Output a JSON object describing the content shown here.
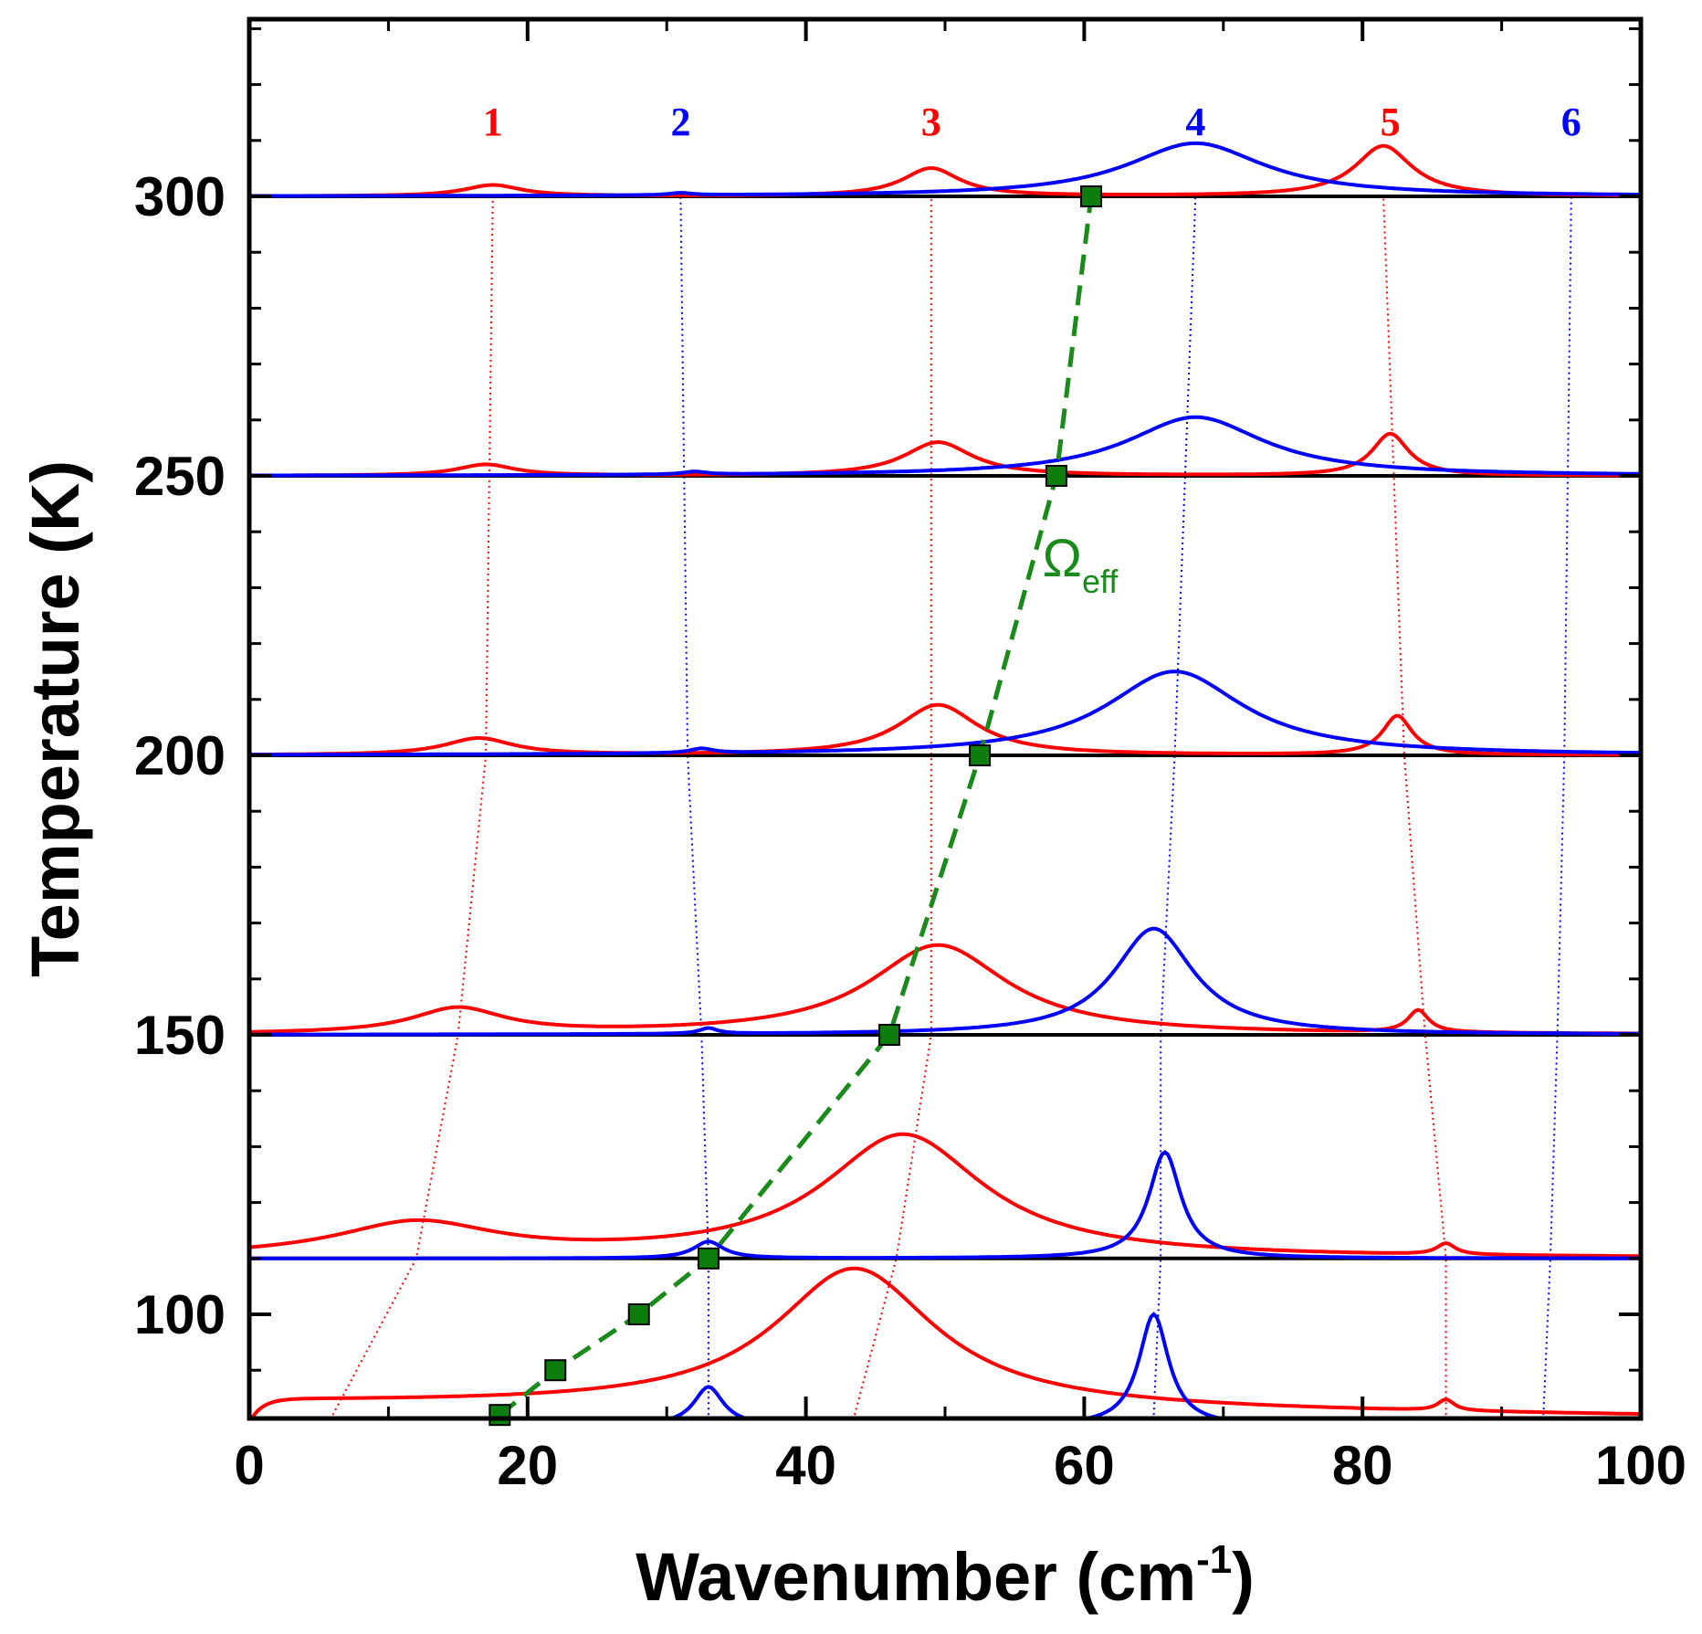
{
  "chart_data": {
    "type": "line",
    "title": "",
    "xlabel": "Wavenumber (cm",
    "xlabel_sup": "-1",
    "xlabel_close": ")",
    "ylabel": "Temperature (K)",
    "xlim": [
      0,
      100
    ],
    "ylim": [
      80,
      330
    ],
    "x_ticks": [
      "0",
      "20",
      "40",
      "60",
      "80",
      "100"
    ],
    "x_tick_values": [
      0,
      20,
      40,
      60,
      80,
      100
    ],
    "y_ticks": [
      "100",
      "150",
      "200",
      "250",
      "300"
    ],
    "y_tick_values": [
      100,
      150,
      200,
      250,
      300
    ],
    "colors": {
      "red": "#ff0000",
      "blue": "#0000ff",
      "green": "#1a8a1a",
      "marker": "#0d7d0d"
    },
    "peak_labels": [
      {
        "text": "1",
        "x": 17.5,
        "color": "red"
      },
      {
        "text": "2",
        "x": 31,
        "color": "blue"
      },
      {
        "text": "3",
        "x": 49,
        "color": "red"
      },
      {
        "text": "4",
        "x": 68,
        "color": "blue"
      },
      {
        "text": "5",
        "x": 82,
        "color": "red"
      },
      {
        "text": "6",
        "x": 95,
        "color": "blue"
      }
    ],
    "omega_label": {
      "main": "Ω",
      "sub": "eff",
      "x": 57,
      "y": 232
    },
    "omega_eff": {
      "name": "Ωeff",
      "x": [
        18,
        22,
        28,
        33,
        46,
        52.5,
        58,
        60.5
      ],
      "y": [
        82,
        90,
        100,
        110,
        150,
        200,
        250,
        300
      ]
    },
    "mode_traces": [
      {
        "mode": "1",
        "color": "red",
        "x": [
          6,
          12,
          15,
          17,
          17.5
        ],
        "y": [
          82,
          110,
          150,
          200,
          300
        ]
      },
      {
        "mode": "2",
        "color": "blue",
        "x": [
          33,
          33,
          32.5,
          31.5,
          31
        ],
        "y": [
          82,
          110,
          150,
          200,
          300
        ]
      },
      {
        "mode": "3",
        "color": "red",
        "x": [
          43.5,
          46.5,
          49,
          49,
          49
        ],
        "y": [
          82,
          110,
          150,
          200,
          300
        ]
      },
      {
        "mode": "4",
        "color": "blue",
        "x": [
          65,
          65.5,
          65.5,
          66.5,
          68
        ],
        "y": [
          82,
          110,
          150,
          200,
          300
        ]
      },
      {
        "mode": "5",
        "color": "red",
        "x": [
          86,
          86,
          84.5,
          83,
          81.5
        ],
        "y": [
          82,
          110,
          150,
          200,
          300
        ]
      },
      {
        "mode": "6",
        "color": "blue",
        "x": [
          93,
          93.5,
          94,
          94.5,
          95
        ],
        "y": [
          82,
          110,
          150,
          200,
          300
        ]
      }
    ],
    "spectra": [
      {
        "temperature": 80,
        "baseline": 80,
        "red_peaks": [
          {
            "center": 43.5,
            "amp": 25,
            "width": 7
          },
          {
            "center": 86,
            "amp": 2,
            "width": 0.7
          }
        ],
        "red_drude": {
          "amp": 4.3,
          "tau": 0.9,
          "slope": 0.025
        },
        "blue_peaks": [
          {
            "center": 65,
            "amp": 20,
            "width": 1.3
          },
          {
            "center": 33,
            "amp": 7,
            "width": 1.3
          }
        ]
      },
      {
        "temperature": 110,
        "baseline": 110,
        "red_peaks": [
          {
            "center": 12,
            "amp": 6,
            "width": 7
          },
          {
            "center": 47,
            "amp": 22,
            "width": 7
          },
          {
            "center": 86,
            "amp": 2,
            "width": 0.8
          }
        ],
        "blue_peaks": [
          {
            "center": 65.8,
            "amp": 19,
            "width": 1.4
          },
          {
            "center": 33,
            "amp": 3,
            "width": 1.3
          }
        ]
      },
      {
        "temperature": 150,
        "baseline": 150,
        "red_peaks": [
          {
            "center": 15,
            "amp": 4.5,
            "width": 4
          },
          {
            "center": 49.5,
            "amp": 16,
            "width": 6
          },
          {
            "center": 84,
            "amp": 4,
            "width": 0.9
          }
        ],
        "blue_peaks": [
          {
            "center": 65,
            "amp": 19,
            "width": 3.5
          },
          {
            "center": 33,
            "amp": 1,
            "width": 0.8
          }
        ]
      },
      {
        "temperature": 200,
        "baseline": 200,
        "red_peaks": [
          {
            "center": 16.5,
            "amp": 3,
            "width": 3
          },
          {
            "center": 49.5,
            "amp": 9,
            "width": 3.5
          },
          {
            "center": 82.5,
            "amp": 7,
            "width": 1.3
          }
        ],
        "blue_peaks": [
          {
            "center": 66.5,
            "amp": 15,
            "width": 6
          },
          {
            "center": 32.5,
            "amp": 0.8,
            "width": 1
          }
        ]
      },
      {
        "temperature": 250,
        "baseline": 250,
        "red_peaks": [
          {
            "center": 17,
            "amp": 2,
            "width": 2.5
          },
          {
            "center": 49.5,
            "amp": 6,
            "width": 3
          },
          {
            "center": 82,
            "amp": 7.5,
            "width": 1.6
          }
        ],
        "blue_peaks": [
          {
            "center": 68,
            "amp": 10.5,
            "width": 6
          },
          {
            "center": 32,
            "amp": 0.5,
            "width": 1
          }
        ]
      },
      {
        "temperature": 300,
        "baseline": 300,
        "red_peaks": [
          {
            "center": 17.5,
            "amp": 2,
            "width": 2.5
          },
          {
            "center": 49,
            "amp": 5,
            "width": 2.5
          },
          {
            "center": 81.5,
            "amp": 9,
            "width": 2.5
          }
        ],
        "blue_peaks": [
          {
            "center": 68,
            "amp": 9.5,
            "width": 6
          },
          {
            "center": 31,
            "amp": 0.4,
            "width": 1
          }
        ]
      }
    ]
  }
}
